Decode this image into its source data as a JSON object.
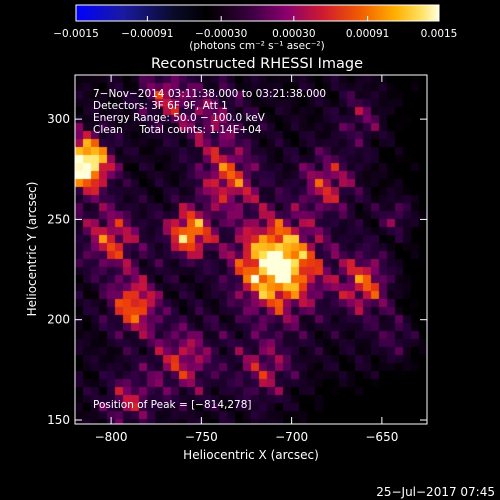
{
  "chart_data": {
    "type": "heatmap",
    "title": "Reconstructed RHESSI Image",
    "xlabel": "Heliocentric X (arcsec)",
    "ylabel": "Heliocentric Y (arcsec)",
    "xlim": [
      -820,
      -625
    ],
    "ylim": [
      148,
      322
    ],
    "xticks": [
      {
        "v": -800,
        "label": "−800"
      },
      {
        "v": -750,
        "label": "−750"
      },
      {
        "v": -700,
        "label": "−700"
      },
      {
        "v": -650,
        "label": "−650"
      }
    ],
    "yticks": [
      {
        "v": 150,
        "label": "150"
      },
      {
        "v": 200,
        "label": "200"
      },
      {
        "v": 250,
        "label": "250"
      },
      {
        "v": 300,
        "label": "300"
      }
    ],
    "colorbar": {
      "range": [
        -0.0015,
        0.0015
      ],
      "ticks": [
        {
          "v": -0.0015,
          "label": "−0.0015"
        },
        {
          "v": -0.00091,
          "label": "−0.00091"
        },
        {
          "v": -0.0003,
          "label": "−0.00030"
        },
        {
          "v": 0.0003,
          "label": "0.00030"
        },
        {
          "v": 0.00091,
          "label": "0.00091"
        },
        {
          "v": 0.0015,
          "label": "0.0015"
        }
      ],
      "unit_label": "(photons cm⁻² s⁻¹ asec⁻²)"
    },
    "annotations": [
      "7−Nov−2014 03:11:38.000 to 03:21:38.000",
      "Detectors: 3F 6F 9F, Att 1",
      "Energy Range: 50.0 − 100.0 keV",
      "Clean     Total counts: 1.14E+04"
    ],
    "peak_label": "Position of Peak = [−814,278]",
    "peak_position": [
      -814,
      278
    ],
    "sources": [
      {
        "x": -708,
        "y": 227,
        "amp": 0.00145,
        "sigma": 17
      },
      {
        "x": -814,
        "y": 278,
        "amp": 0.0015,
        "sigma": 10
      },
      {
        "x": -757,
        "y": 243,
        "amp": 0.0011,
        "sigma": 9
      },
      {
        "x": -787,
        "y": 207,
        "amp": 0.00095,
        "sigma": 10
      },
      {
        "x": -658,
        "y": 218,
        "amp": 0.00085,
        "sigma": 12
      },
      {
        "x": -735,
        "y": 270,
        "amp": 0.0008,
        "sigma": 12
      },
      {
        "x": -680,
        "y": 268,
        "amp": 0.0007,
        "sigma": 11
      },
      {
        "x": -660,
        "y": 300,
        "amp": 0.00045,
        "sigma": 10
      },
      {
        "x": -760,
        "y": 180,
        "amp": 0.0007,
        "sigma": 13
      },
      {
        "x": -715,
        "y": 175,
        "amp": 0.0006,
        "sigma": 12
      },
      {
        "x": -640,
        "y": 190,
        "amp": 0.0006,
        "sigma": 9
      },
      {
        "x": -790,
        "y": 160,
        "amp": 0.0006,
        "sigma": 10
      },
      {
        "x": -640,
        "y": 252,
        "amp": 0.0007,
        "sigma": 8
      },
      {
        "x": -745,
        "y": 300,
        "amp": 0.0005,
        "sigma": 13
      },
      {
        "x": -800,
        "y": 240,
        "amp": 0.0008,
        "sigma": 12
      },
      {
        "x": -770,
        "y": 312,
        "amp": 0.0006,
        "sigma": 10
      }
    ],
    "background_level": 0.0002
  },
  "footer": {
    "timestamp": "25−Jul−2017 07:45"
  }
}
